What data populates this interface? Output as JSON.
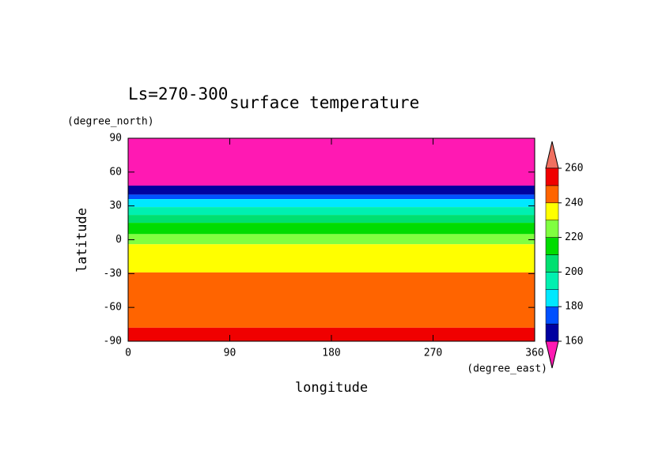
{
  "chart_data": {
    "type": "contour",
    "title": "surface temperature",
    "subtitle": "Ls=270-300",
    "x_label": "longitude",
    "x_units": "(degree_east)",
    "y_label": "latitude",
    "y_units": "(degree_north)",
    "xlim": [
      0,
      360
    ],
    "xticks": [
      0,
      90,
      180,
      270,
      360
    ],
    "ylim": [
      -90,
      90
    ],
    "yticks": [
      90,
      60,
      30,
      0,
      -30,
      -60,
      -90
    ],
    "lat_edges": [
      90,
      48,
      40,
      36,
      29,
      22,
      15,
      5,
      -4,
      -29,
      -78,
      -90
    ],
    "values": [
      150,
      165,
      175,
      185,
      195,
      205,
      215,
      225,
      235,
      245,
      255
    ],
    "levels": [
      160,
      170,
      180,
      190,
      200,
      210,
      220,
      230,
      240,
      250,
      260
    ],
    "colors": [
      "#ff19b3",
      "#0000a0",
      "#0050ff",
      "#00e8ff",
      "#00f0b0",
      "#00e070",
      "#00dc00",
      "#80ff40",
      "#ffff00",
      "#ff6400",
      "#f00000",
      "#f07060"
    ],
    "colorbar_ticks": [
      160,
      180,
      200,
      220,
      240,
      260
    ]
  }
}
